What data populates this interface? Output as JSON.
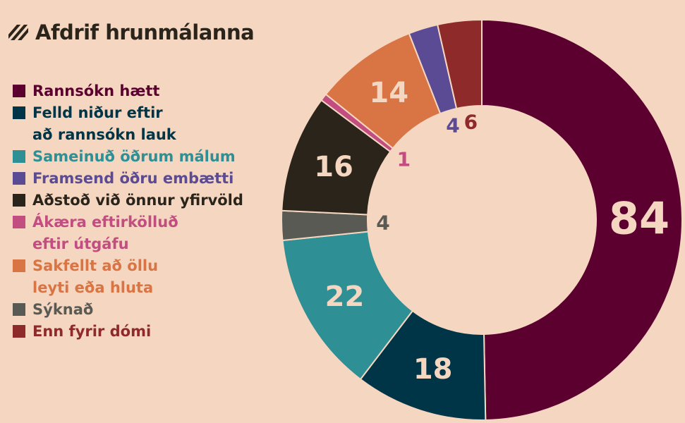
{
  "chart_data": {
    "type": "donut",
    "title": "Afdrif hrunmálanna",
    "series": [
      {
        "name": "Rannsókn hætt",
        "color": "#5c0030",
        "value": 84
      },
      {
        "name": "Felld niður eftir\nað rannsókn lauk",
        "color": "#003548",
        "value": 18
      },
      {
        "name": "Sameinuð öðrum málum",
        "color": "#2e8f94",
        "value": 22
      },
      {
        "name": "Framsend öðru embætti",
        "color": "#5b4a94",
        "value": 4
      },
      {
        "name": "Aðstoð við önnur yfirvöld",
        "color": "#2b241b",
        "value": 16
      },
      {
        "name": "Ákæra eftirkölluð\neftir útgáfu",
        "color": "#c24d80",
        "value": 1
      },
      {
        "name": "Sakfellt að öllu\nleyti eða hluta",
        "color": "#d97444",
        "value": 14
      },
      {
        "name": "Sýknað",
        "color": "#5a5a55",
        "value": 4
      },
      {
        "name": "Enn fyrir dómi",
        "color": "#8e2a2a",
        "value": 6
      }
    ]
  }
}
